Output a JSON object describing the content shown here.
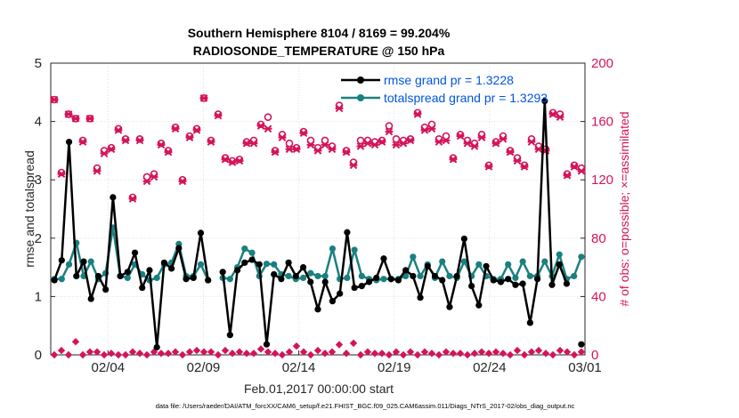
{
  "chart_data": {
    "type": "line",
    "title_line1": "Southern Hemisphere 8104 / 8169 = 99.204%",
    "title_line2": "RADIOSONDE_TEMPERATURE @ 150 hPa",
    "xlabel": "Feb.01,2017 00:00:00 start",
    "ylabel_left": "rmse and totalspread",
    "ylabel_right": "# of obs: o=possible; ×=assimilated",
    "footer": "data file: /Users/raeder/DAI/ATM_forcXX/CAM6_setup/f.e21.FHIST_BGC.f09_025.CAM6assim.011/Diags_NTrS_2017-02/obs_diag_output.nc",
    "xlim": [
      0,
      28
    ],
    "ylim_left": [
      0,
      5
    ],
    "ylim_right": [
      0,
      200
    ],
    "x_tick_positions": [
      3,
      8,
      13,
      18,
      23,
      28
    ],
    "x_tick_labels": [
      "02/04",
      "02/09",
      "02/14",
      "02/19",
      "02/24",
      "03/01"
    ],
    "y_left_ticks": [
      "0",
      "1",
      "2",
      "3",
      "4",
      "5"
    ],
    "y_right_ticks": [
      "0",
      "40",
      "80",
      "120",
      "160",
      "200"
    ],
    "colors": {
      "rmse": "#000000",
      "spread": "#1a8080",
      "obs": "#d4145a"
    },
    "series": [
      {
        "name": "rmse",
        "legend": "rmse grand pr = 1.3228",
        "values": [
          1.28,
          1.62,
          3.65,
          1.35,
          1.6,
          0.96,
          1.35,
          1.12,
          2.7,
          1.35,
          1.42,
          1.75,
          1.15,
          1.45,
          0.13,
          1.58,
          1.48,
          1.83,
          1.3,
          1.32,
          2.09,
          1.28,
          null,
          1.42,
          0.34,
          1.45,
          1.58,
          1.63,
          1.55,
          0.18,
          1.38,
          1.3,
          1.58,
          1.35,
          1.5,
          1.25,
          0.78,
          1.25,
          0.92,
          1.05,
          2.1,
          1.15,
          1.18,
          1.25,
          1.32,
          1.65,
          1.3,
          1.28,
          1.45,
          1.35,
          0.98,
          1.52,
          1.35,
          1.28,
          0.82,
          1.35,
          1.99,
          1.18,
          0.85,
          1.52,
          1.28,
          1.25,
          1.3,
          1.2,
          1.22,
          0.55,
          1.3,
          4.35,
          1.2,
          1.55,
          1.22,
          null,
          0.18
        ],
        "spread": [
          1.3,
          1.3,
          1.55,
          1.92,
          1.35,
          1.6,
          1.3,
          1.4,
          2.18,
          1.35,
          1.32,
          1.55,
          1.38,
          1.28,
          1.32,
          1.55,
          1.58,
          1.9,
          1.35,
          1.35,
          1.55,
          1.28,
          null,
          1.32,
          1.3,
          1.5,
          1.82,
          1.75,
          1.35,
          1.56,
          1.55,
          1.38,
          1.35,
          1.3,
          1.32,
          1.4,
          1.35,
          1.35,
          1.82,
          1.3,
          1.32,
          1.8,
          1.35,
          1.3,
          1.28,
          1.3,
          1.3,
          1.3,
          1.35,
          1.68,
          1.35,
          1.55,
          1.32,
          1.6,
          1.35,
          1.32,
          1.6,
          1.35,
          1.55,
          1.35,
          1.3,
          1.3,
          1.55,
          1.32,
          1.6,
          1.35,
          1.35,
          1.6,
          1.35,
          1.72,
          1.3,
          1.35,
          1.68
        ]
      },
      {
        "name": "totalspread",
        "legend": "totalspread grand pr = 1.3293"
      },
      {
        "name": "obs_possible",
        "values": [
          175,
          125,
          165,
          162,
          147,
          162,
          128,
          140,
          142,
          155,
          148,
          108,
          148,
          122,
          124,
          145,
          140,
          156,
          120,
          150,
          155,
          176,
          147,
          165,
          135,
          133,
          134,
          146,
          147,
          158,
          163,
          140,
          151,
          145,
          142,
          153,
          147,
          142,
          147,
          143,
          171,
          140,
          132,
          147,
          147,
          146,
          147,
          157,
          148,
          147,
          148,
          166,
          156,
          158,
          148,
          150,
          135,
          151,
          147,
          145,
          151,
          130,
          146,
          150,
          140,
          135,
          130,
          148,
          143,
          141,
          166,
          165,
          124,
          130,
          128
        ]
      },
      {
        "name": "obs_assimilated",
        "values": [
          175,
          124,
          165,
          162,
          146,
          162,
          126,
          138,
          141,
          154,
          147,
          107,
          147,
          119,
          122,
          144,
          139,
          155,
          119,
          149,
          154,
          176,
          146,
          164,
          134,
          132,
          133,
          145,
          145,
          157,
          155,
          139,
          149,
          141,
          141,
          152,
          144,
          140,
          144,
          141,
          169,
          139,
          130,
          143,
          145,
          144,
          146,
          153,
          144,
          145,
          147,
          165,
          154,
          155,
          146,
          147,
          134,
          150,
          145,
          143,
          149,
          129,
          145,
          148,
          139,
          133,
          129,
          146,
          141,
          140,
          165,
          163,
          123,
          129,
          126
        ]
      },
      {
        "name": "obs_low",
        "values": [
          0,
          3,
          0,
          9,
          0,
          2,
          2,
          0,
          1,
          0,
          0,
          2,
          1,
          0,
          2,
          1,
          1,
          2,
          0,
          2,
          3,
          2,
          2,
          0,
          3,
          1,
          2,
          1,
          1,
          4,
          2,
          1,
          0,
          2,
          6,
          2,
          0,
          3,
          1,
          2,
          7,
          1,
          8,
          0,
          2,
          1,
          1,
          0,
          2,
          0,
          2,
          0,
          2,
          1,
          0,
          2,
          1,
          1,
          0,
          1,
          2,
          1,
          2,
          1,
          0,
          3,
          0,
          2,
          3,
          1,
          0,
          3,
          2,
          0,
          2
        ]
      }
    ]
  }
}
